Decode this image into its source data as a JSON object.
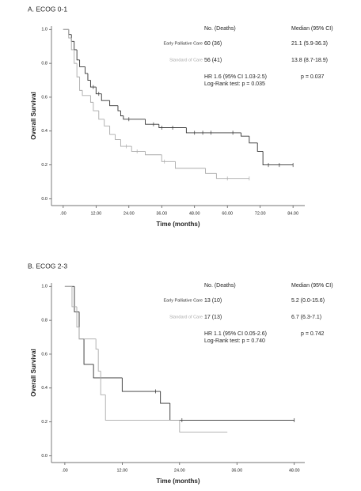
{
  "chart_data": [
    {
      "type": "step",
      "title": "A. ECOG 0-1",
      "xlabel": "Time (months)",
      "ylabel": "Overall Survival",
      "xlim": [
        -4.3,
        88.3
      ],
      "ylim": [
        -0.04,
        1.02
      ],
      "xticks": [
        {
          "value": 0,
          "label": ".00"
        },
        {
          "value": 12,
          "label": "12.00"
        },
        {
          "value": 24,
          "label": "24.00"
        },
        {
          "value": 36,
          "label": "36.00"
        },
        {
          "value": 48,
          "label": "48.00"
        },
        {
          "value": 60,
          "label": "60.00"
        },
        {
          "value": 72,
          "label": "72.00"
        },
        {
          "value": 84,
          "label": "84.00"
        }
      ],
      "yticks": [
        {
          "value": 0,
          "label": "0.0"
        },
        {
          "value": 0.2,
          "label": "0.2"
        },
        {
          "value": 0.4,
          "label": "0.4"
        },
        {
          "value": 0.6,
          "label": "0.6"
        },
        {
          "value": 0.8,
          "label": "0.8"
        },
        {
          "value": 1,
          "label": "1.0"
        }
      ],
      "series": [
        {
          "name": "Early Palliative Care",
          "color": "#333333",
          "x": [
            0,
            2,
            3,
            4,
            5,
            6,
            8,
            9,
            10,
            12,
            14,
            17,
            20,
            21,
            22,
            30,
            35,
            45,
            65,
            68,
            71,
            73,
            84
          ],
          "values": [
            1.0,
            0.97,
            0.93,
            0.88,
            0.82,
            0.78,
            0.74,
            0.7,
            0.66,
            0.62,
            0.58,
            0.55,
            0.52,
            0.49,
            0.47,
            0.44,
            0.42,
            0.39,
            0.37,
            0.33,
            0.28,
            0.2,
            0.2
          ],
          "censored_x": [
            11,
            13,
            24,
            33,
            36,
            40,
            48,
            51,
            54,
            62,
            75,
            79,
            84
          ]
        },
        {
          "name": "Standard of Care",
          "color": "#aaaaaa",
          "x": [
            0,
            2,
            3,
            4,
            5,
            6,
            7,
            10,
            11,
            13,
            15,
            17,
            19,
            21,
            25,
            30,
            36,
            41,
            52,
            56,
            68
          ],
          "values": [
            1.0,
            0.95,
            0.88,
            0.8,
            0.72,
            0.64,
            0.61,
            0.57,
            0.52,
            0.47,
            0.43,
            0.38,
            0.35,
            0.31,
            0.28,
            0.26,
            0.22,
            0.18,
            0.15,
            0.12,
            0.12
          ],
          "censored_x": [
            23,
            27,
            37,
            60,
            68
          ]
        }
      ],
      "table": {
        "header": [
          "No. (Deaths)",
          "Median (95% CI)"
        ],
        "rows": [
          [
            "60 (36)",
            "21.1 (5.9-36.3)"
          ],
          [
            "56 (41)",
            "13.8 (8.7-18.9)"
          ]
        ]
      },
      "hr": "HR 1.6 (95% CI 1.03-2.5)",
      "logrank": "Log-Rank test: p = 0.035",
      "median_p": "p = 0.037"
    },
    {
      "type": "step",
      "title": "B. ECOG 2-3",
      "xlabel": "Time (months)",
      "ylabel": "Overall Survival",
      "xlim": [
        -2.8,
        50.2
      ],
      "ylim": [
        -0.04,
        1.02
      ],
      "xticks": [
        {
          "value": 0,
          "label": ".00"
        },
        {
          "value": 12,
          "label": "12.00"
        },
        {
          "value": 24,
          "label": "24.00"
        },
        {
          "value": 36,
          "label": "36.00"
        },
        {
          "value": 48,
          "label": "48.00"
        }
      ],
      "yticks": [
        {
          "value": 0,
          "label": "0.0"
        },
        {
          "value": 0.2,
          "label": "0.2"
        },
        {
          "value": 0.4,
          "label": "0.4"
        },
        {
          "value": 0.6,
          "label": "0.6"
        },
        {
          "value": 0.8,
          "label": "0.8"
        },
        {
          "value": 1,
          "label": "1.0"
        }
      ],
      "series": [
        {
          "name": "Early Palliative Care",
          "color": "#333333",
          "x": [
            0,
            2,
            3,
            4,
            6,
            12,
            20,
            22,
            48
          ],
          "values": [
            1.0,
            0.85,
            0.69,
            0.54,
            0.46,
            0.38,
            0.31,
            0.21,
            0.21
          ],
          "censored_x": [
            19,
            24.5,
            48
          ]
        },
        {
          "name": "Standard of Care",
          "color": "#aaaaaa",
          "x": [
            0,
            1.5,
            2.5,
            3,
            6.5,
            7,
            7.5,
            8.5,
            24,
            34
          ],
          "values": [
            1.0,
            0.88,
            0.76,
            0.69,
            0.63,
            0.5,
            0.36,
            0.21,
            0.14,
            0.14
          ],
          "censored_x": []
        }
      ],
      "table": {
        "header": [
          "No. (Deaths)",
          "Median (95% CI)"
        ],
        "rows": [
          [
            "13 (10)",
            "5.2 (0.0-15.6)"
          ],
          [
            "17 (13)",
            "6.7 (6.3-7.1)"
          ]
        ]
      },
      "hr": "HR 1.1 (95% CI 0.05-2.6)",
      "logrank": "Log-Rank test: p = 0.740",
      "median_p": "p = 0.742"
    }
  ]
}
